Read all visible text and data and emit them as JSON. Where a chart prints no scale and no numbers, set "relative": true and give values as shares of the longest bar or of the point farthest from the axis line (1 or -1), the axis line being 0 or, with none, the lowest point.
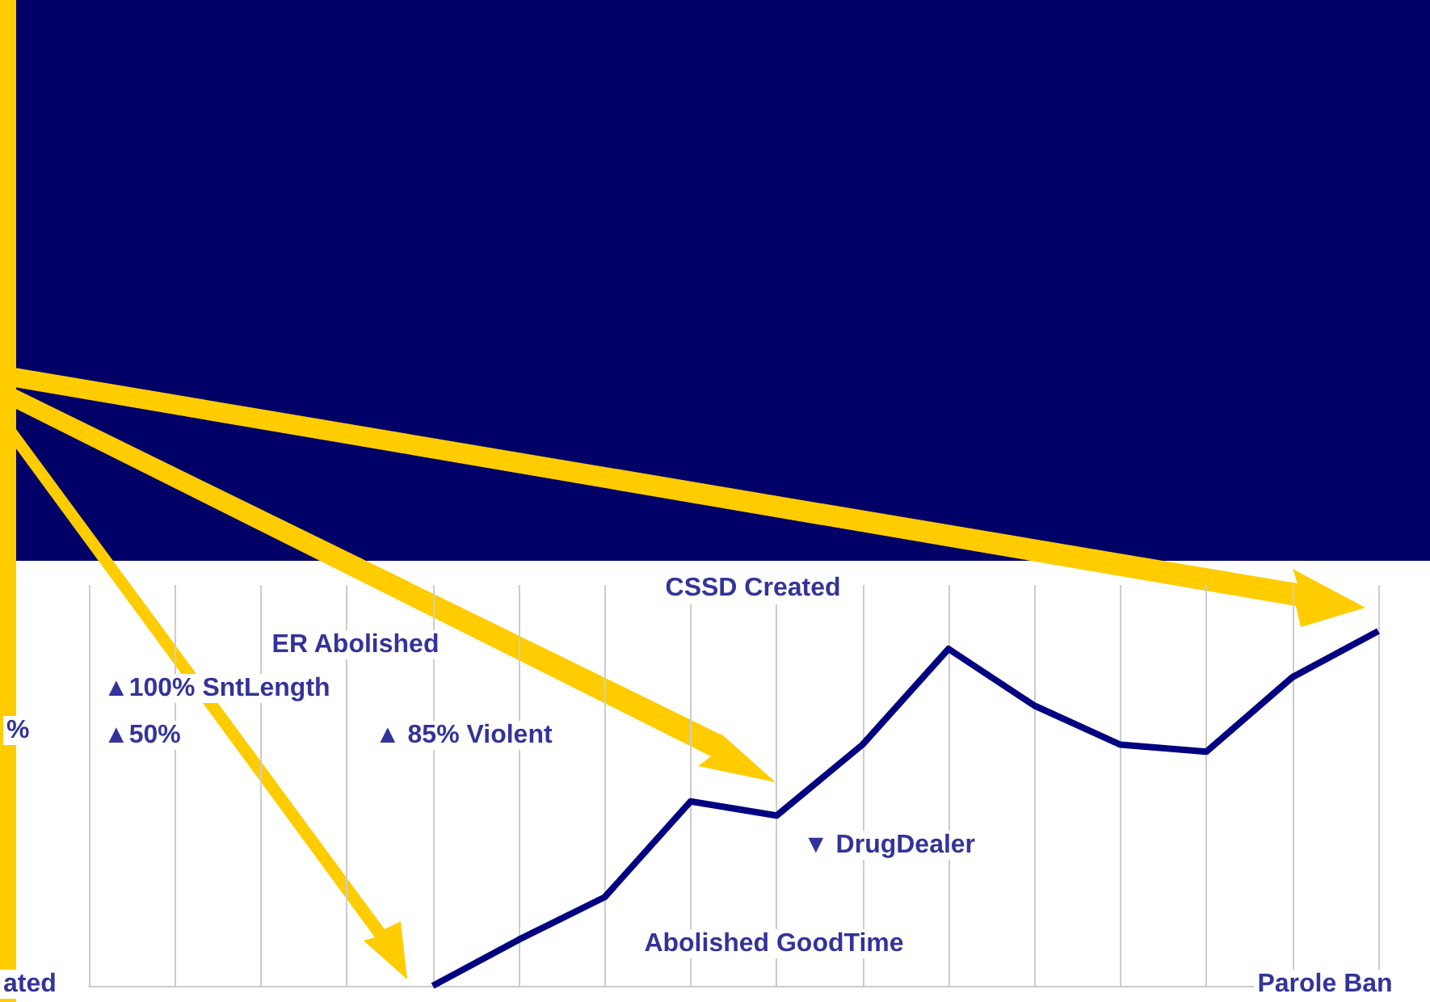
{
  "chart_data": {
    "type": "line",
    "relative": true,
    "grid": "x",
    "marker": "none",
    "categories": [
      null,
      null,
      null,
      null,
      null,
      null,
      null,
      null,
      null,
      null,
      null,
      null,
      null,
      null,
      null,
      null
    ],
    "series": [
      {
        "color": "#000080",
        "values": [
          null,
          null,
          null,
          null,
          0,
          0.13,
          0.25,
          0.52,
          0.48,
          0.68,
          0.95,
          0.79,
          0.68,
          0.66,
          0.87,
          1
        ]
      }
    ],
    "annotations": [
      "CSSD Created",
      "ER Abolished",
      "▲100% SntLength",
      "%",
      "▲50%",
      "▲ 85% Violent",
      "▼ DrugDealer",
      "Abolished GoodTime",
      "ated",
      "Parole Ban"
    ]
  }
}
